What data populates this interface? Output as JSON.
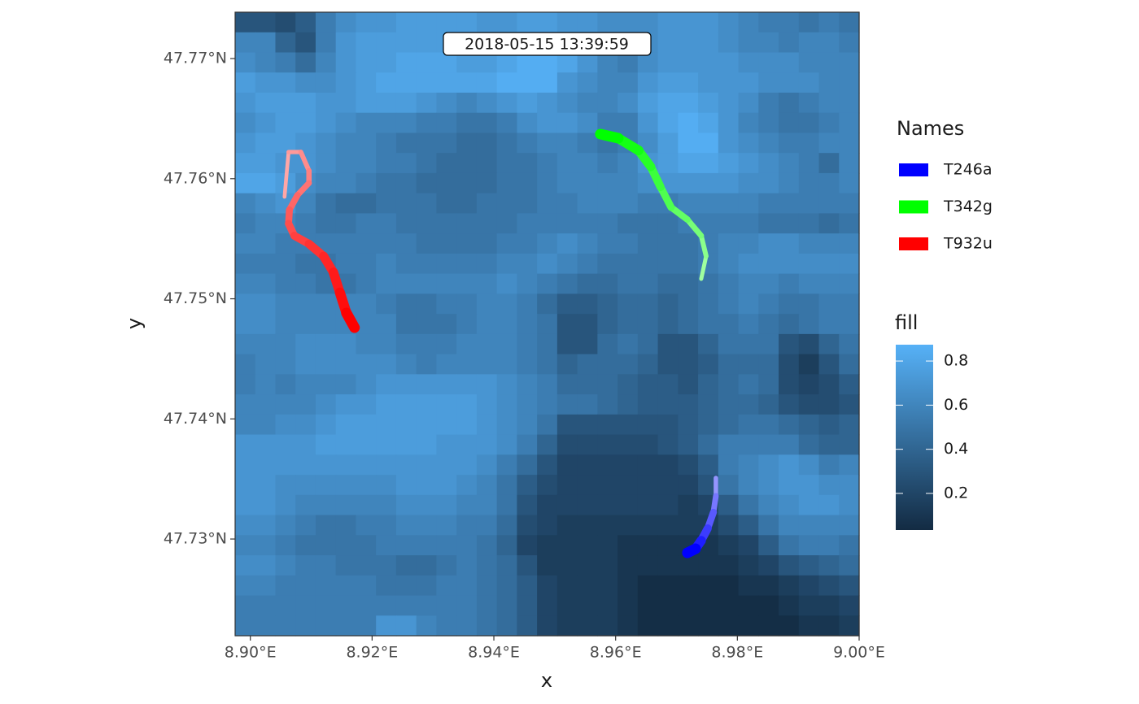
{
  "chart_data": {
    "type": "track-map",
    "annotation": "2018-05-15 13:39:59",
    "x_label": "x",
    "y_label": "y",
    "xlim": [
      8.8975,
      9.0
    ],
    "ylim": [
      47.72195,
      47.77386
    ],
    "xticks": [
      {
        "value": 8.9,
        "label": "8.90°E"
      },
      {
        "value": 8.92,
        "label": "8.92°E"
      },
      {
        "value": 8.94,
        "label": "8.94°E"
      },
      {
        "value": 8.96,
        "label": "8.96°E"
      },
      {
        "value": 8.98,
        "label": "8.98°E"
      },
      {
        "value": 9.0,
        "label": "9.00°E"
      }
    ],
    "yticks": [
      {
        "value": 47.73,
        "label": "47.73°N"
      },
      {
        "value": 47.74,
        "label": "47.74°N"
      },
      {
        "value": 47.75,
        "label": "47.75°N"
      },
      {
        "value": 47.76,
        "label": "47.76°N"
      },
      {
        "value": 47.77,
        "label": "47.77°N"
      }
    ],
    "legend_title": "Names",
    "series": [
      {
        "name": "T246a",
        "color": "#0000ff",
        "x": [
          8.97647,
          8.97647,
          8.97607,
          8.97513,
          8.97406,
          8.97313,
          8.97179
        ],
        "y": [
          47.73508,
          47.73359,
          47.73223,
          47.73088,
          47.72987,
          47.72919,
          47.72885
        ]
      },
      {
        "name": "T342g",
        "color": "#00ff00",
        "x": [
          8.97406,
          8.97487,
          8.97406,
          8.97179,
          8.96912,
          8.96738,
          8.96578,
          8.96377,
          8.96043,
          8.95749
        ],
        "y": [
          47.75166,
          47.75355,
          47.75525,
          47.7566,
          47.75761,
          47.75931,
          47.761,
          47.76235,
          47.76337,
          47.76371
        ]
      },
      {
        "name": "T932u",
        "color": "#ff0000",
        "x": [
          8.90562,
          8.90628,
          8.90829,
          8.90963,
          8.90963,
          8.90775,
          8.90642,
          8.90628,
          8.90722,
          8.90963,
          8.91203,
          8.91364,
          8.91471,
          8.91578,
          8.91711
        ],
        "y": [
          47.75849,
          47.76222,
          47.76222,
          47.76066,
          47.75964,
          47.75863,
          47.75741,
          47.75626,
          47.75525,
          47.75457,
          47.75355,
          47.7522,
          47.75051,
          47.74882,
          47.7476
        ]
      }
    ],
    "fill_title": "fill",
    "fill_low_color": "#132b43",
    "fill_high_color": "#56b1f7",
    "fill_lim": [
      0.034,
      0.874
    ],
    "fill_ticks": [
      0.2,
      0.4,
      0.6,
      0.8
    ],
    "raster": [
      [
        0.3,
        0.3,
        0.25,
        0.35,
        0.55,
        0.65,
        0.7,
        0.7,
        0.75,
        0.75,
        0.75,
        0.75,
        0.7,
        0.7,
        0.75,
        0.75,
        0.7,
        0.7,
        0.65,
        0.65,
        0.65,
        0.7,
        0.7,
        0.7,
        0.65,
        0.6,
        0.55,
        0.55,
        0.5,
        0.55,
        0.5
      ],
      [
        0.6,
        0.6,
        0.4,
        0.3,
        0.55,
        0.7,
        0.75,
        0.75,
        0.75,
        0.75,
        0.75,
        0.75,
        0.75,
        0.75,
        0.8,
        0.8,
        0.75,
        0.7,
        0.65,
        0.6,
        0.65,
        0.7,
        0.7,
        0.7,
        0.65,
        0.6,
        0.6,
        0.55,
        0.6,
        0.6,
        0.55
      ],
      [
        0.65,
        0.6,
        0.55,
        0.45,
        0.6,
        0.7,
        0.75,
        0.75,
        0.8,
        0.8,
        0.8,
        0.75,
        0.75,
        0.8,
        0.85,
        0.85,
        0.8,
        0.7,
        0.6,
        0.55,
        0.65,
        0.7,
        0.7,
        0.7,
        0.7,
        0.65,
        0.65,
        0.65,
        0.6,
        0.6,
        0.6
      ],
      [
        0.75,
        0.7,
        0.7,
        0.65,
        0.65,
        0.7,
        0.75,
        0.8,
        0.8,
        0.8,
        0.8,
        0.8,
        0.8,
        0.85,
        0.85,
        0.85,
        0.7,
        0.65,
        0.6,
        0.6,
        0.7,
        0.75,
        0.75,
        0.7,
        0.7,
        0.7,
        0.65,
        0.65,
        0.65,
        0.6,
        0.6
      ],
      [
        0.7,
        0.75,
        0.75,
        0.75,
        0.7,
        0.7,
        0.75,
        0.75,
        0.75,
        0.7,
        0.65,
        0.6,
        0.65,
        0.7,
        0.75,
        0.7,
        0.65,
        0.6,
        0.6,
        0.65,
        0.75,
        0.8,
        0.8,
        0.75,
        0.7,
        0.65,
        0.55,
        0.5,
        0.55,
        0.6,
        0.6
      ],
      [
        0.65,
        0.7,
        0.75,
        0.75,
        0.7,
        0.65,
        0.6,
        0.6,
        0.6,
        0.55,
        0.55,
        0.5,
        0.5,
        0.55,
        0.65,
        0.7,
        0.7,
        0.65,
        0.55,
        0.55,
        0.7,
        0.8,
        0.85,
        0.8,
        0.7,
        0.6,
        0.55,
        0.5,
        0.5,
        0.55,
        0.6
      ],
      [
        0.7,
        0.75,
        0.75,
        0.7,
        0.65,
        0.6,
        0.6,
        0.55,
        0.5,
        0.5,
        0.5,
        0.45,
        0.45,
        0.5,
        0.55,
        0.6,
        0.6,
        0.55,
        0.5,
        0.55,
        0.65,
        0.75,
        0.85,
        0.85,
        0.7,
        0.65,
        0.6,
        0.55,
        0.55,
        0.6,
        0.6
      ],
      [
        0.75,
        0.75,
        0.7,
        0.7,
        0.65,
        0.6,
        0.6,
        0.55,
        0.55,
        0.5,
        0.45,
        0.45,
        0.45,
        0.5,
        0.5,
        0.55,
        0.6,
        0.6,
        0.55,
        0.6,
        0.7,
        0.75,
        0.8,
        0.8,
        0.75,
        0.7,
        0.65,
        0.6,
        0.55,
        0.45,
        0.6
      ],
      [
        0.8,
        0.8,
        0.75,
        0.65,
        0.6,
        0.6,
        0.55,
        0.5,
        0.5,
        0.45,
        0.45,
        0.45,
        0.45,
        0.5,
        0.5,
        0.55,
        0.6,
        0.6,
        0.6,
        0.6,
        0.65,
        0.7,
        0.7,
        0.7,
        0.7,
        0.65,
        0.65,
        0.6,
        0.55,
        0.55,
        0.6
      ],
      [
        0.6,
        0.65,
        0.7,
        0.6,
        0.5,
        0.45,
        0.45,
        0.5,
        0.5,
        0.5,
        0.45,
        0.45,
        0.5,
        0.5,
        0.5,
        0.55,
        0.55,
        0.6,
        0.6,
        0.6,
        0.55,
        0.55,
        0.6,
        0.6,
        0.6,
        0.6,
        0.55,
        0.55,
        0.55,
        0.55,
        0.55
      ],
      [
        0.55,
        0.6,
        0.6,
        0.55,
        0.5,
        0.5,
        0.55,
        0.55,
        0.5,
        0.5,
        0.5,
        0.5,
        0.5,
        0.5,
        0.55,
        0.55,
        0.55,
        0.55,
        0.55,
        0.5,
        0.5,
        0.5,
        0.55,
        0.55,
        0.55,
        0.55,
        0.5,
        0.5,
        0.5,
        0.45,
        0.5
      ],
      [
        0.6,
        0.6,
        0.55,
        0.55,
        0.55,
        0.55,
        0.55,
        0.55,
        0.55,
        0.5,
        0.5,
        0.5,
        0.5,
        0.55,
        0.55,
        0.6,
        0.65,
        0.6,
        0.55,
        0.55,
        0.5,
        0.5,
        0.5,
        0.55,
        0.6,
        0.6,
        0.65,
        0.65,
        0.6,
        0.6,
        0.6
      ],
      [
        0.55,
        0.55,
        0.55,
        0.5,
        0.5,
        0.55,
        0.55,
        0.6,
        0.55,
        0.55,
        0.55,
        0.55,
        0.55,
        0.6,
        0.6,
        0.65,
        0.6,
        0.55,
        0.5,
        0.5,
        0.5,
        0.5,
        0.5,
        0.55,
        0.6,
        0.65,
        0.65,
        0.65,
        0.65,
        0.65,
        0.65
      ],
      [
        0.6,
        0.6,
        0.55,
        0.55,
        0.5,
        0.5,
        0.55,
        0.6,
        0.6,
        0.6,
        0.6,
        0.6,
        0.6,
        0.65,
        0.6,
        0.55,
        0.5,
        0.45,
        0.45,
        0.5,
        0.5,
        0.45,
        0.45,
        0.5,
        0.55,
        0.6,
        0.6,
        0.55,
        0.6,
        0.6,
        0.6
      ],
      [
        0.65,
        0.65,
        0.6,
        0.6,
        0.6,
        0.6,
        0.6,
        0.55,
        0.5,
        0.5,
        0.55,
        0.55,
        0.6,
        0.6,
        0.55,
        0.45,
        0.35,
        0.35,
        0.4,
        0.45,
        0.45,
        0.4,
        0.45,
        0.5,
        0.55,
        0.6,
        0.55,
        0.5,
        0.5,
        0.55,
        0.55
      ],
      [
        0.65,
        0.65,
        0.6,
        0.6,
        0.6,
        0.6,
        0.6,
        0.6,
        0.5,
        0.5,
        0.5,
        0.55,
        0.6,
        0.6,
        0.55,
        0.5,
        0.3,
        0.3,
        0.4,
        0.45,
        0.45,
        0.4,
        0.45,
        0.5,
        0.5,
        0.55,
        0.5,
        0.45,
        0.5,
        0.55,
        0.55
      ],
      [
        0.6,
        0.6,
        0.6,
        0.65,
        0.65,
        0.65,
        0.6,
        0.6,
        0.55,
        0.55,
        0.55,
        0.6,
        0.6,
        0.6,
        0.55,
        0.5,
        0.3,
        0.3,
        0.45,
        0.5,
        0.45,
        0.3,
        0.3,
        0.4,
        0.5,
        0.5,
        0.5,
        0.3,
        0.25,
        0.4,
        0.5
      ],
      [
        0.55,
        0.6,
        0.6,
        0.65,
        0.65,
        0.65,
        0.65,
        0.65,
        0.6,
        0.55,
        0.6,
        0.6,
        0.6,
        0.6,
        0.55,
        0.5,
        0.4,
        0.45,
        0.45,
        0.45,
        0.4,
        0.3,
        0.3,
        0.35,
        0.45,
        0.45,
        0.45,
        0.25,
        0.15,
        0.3,
        0.45
      ],
      [
        0.55,
        0.6,
        0.55,
        0.6,
        0.6,
        0.6,
        0.65,
        0.7,
        0.7,
        0.7,
        0.7,
        0.7,
        0.7,
        0.65,
        0.6,
        0.55,
        0.45,
        0.45,
        0.45,
        0.4,
        0.35,
        0.35,
        0.3,
        0.4,
        0.45,
        0.5,
        0.45,
        0.25,
        0.2,
        0.25,
        0.35
      ],
      [
        0.6,
        0.6,
        0.6,
        0.6,
        0.65,
        0.7,
        0.7,
        0.75,
        0.75,
        0.75,
        0.75,
        0.75,
        0.7,
        0.65,
        0.6,
        0.55,
        0.5,
        0.5,
        0.45,
        0.4,
        0.35,
        0.35,
        0.35,
        0.4,
        0.45,
        0.45,
        0.4,
        0.3,
        0.25,
        0.25,
        0.3
      ],
      [
        0.6,
        0.6,
        0.65,
        0.65,
        0.7,
        0.75,
        0.75,
        0.75,
        0.75,
        0.75,
        0.75,
        0.75,
        0.7,
        0.65,
        0.6,
        0.5,
        0.3,
        0.3,
        0.3,
        0.3,
        0.3,
        0.3,
        0.35,
        0.4,
        0.45,
        0.5,
        0.5,
        0.45,
        0.4,
        0.35,
        0.4
      ],
      [
        0.7,
        0.7,
        0.7,
        0.7,
        0.75,
        0.75,
        0.75,
        0.75,
        0.75,
        0.75,
        0.7,
        0.7,
        0.7,
        0.65,
        0.55,
        0.4,
        0.25,
        0.25,
        0.25,
        0.25,
        0.25,
        0.3,
        0.35,
        0.45,
        0.55,
        0.55,
        0.55,
        0.55,
        0.45,
        0.4,
        0.4
      ],
      [
        0.7,
        0.7,
        0.7,
        0.7,
        0.7,
        0.7,
        0.7,
        0.7,
        0.7,
        0.7,
        0.7,
        0.7,
        0.65,
        0.55,
        0.45,
        0.3,
        0.2,
        0.2,
        0.2,
        0.2,
        0.2,
        0.2,
        0.25,
        0.35,
        0.55,
        0.6,
        0.65,
        0.7,
        0.65,
        0.55,
        0.6
      ],
      [
        0.7,
        0.7,
        0.65,
        0.65,
        0.65,
        0.65,
        0.65,
        0.65,
        0.7,
        0.7,
        0.7,
        0.65,
        0.6,
        0.5,
        0.35,
        0.25,
        0.2,
        0.2,
        0.2,
        0.2,
        0.2,
        0.2,
        0.2,
        0.3,
        0.5,
        0.6,
        0.65,
        0.7,
        0.7,
        0.65,
        0.65
      ],
      [
        0.7,
        0.7,
        0.65,
        0.6,
        0.6,
        0.6,
        0.6,
        0.6,
        0.65,
        0.65,
        0.65,
        0.6,
        0.6,
        0.5,
        0.3,
        0.2,
        0.2,
        0.2,
        0.2,
        0.2,
        0.2,
        0.2,
        0.15,
        0.2,
        0.35,
        0.5,
        0.6,
        0.65,
        0.7,
        0.7,
        0.65
      ],
      [
        0.65,
        0.65,
        0.6,
        0.55,
        0.5,
        0.5,
        0.55,
        0.55,
        0.6,
        0.6,
        0.6,
        0.55,
        0.55,
        0.45,
        0.25,
        0.2,
        0.15,
        0.15,
        0.15,
        0.15,
        0.15,
        0.15,
        0.15,
        0.15,
        0.25,
        0.35,
        0.5,
        0.6,
        0.6,
        0.6,
        0.6
      ],
      [
        0.6,
        0.6,
        0.55,
        0.5,
        0.5,
        0.5,
        0.5,
        0.55,
        0.55,
        0.55,
        0.55,
        0.55,
        0.5,
        0.4,
        0.2,
        0.15,
        0.15,
        0.15,
        0.15,
        0.1,
        0.1,
        0.1,
        0.1,
        0.1,
        0.15,
        0.2,
        0.35,
        0.5,
        0.55,
        0.55,
        0.5
      ],
      [
        0.65,
        0.65,
        0.6,
        0.55,
        0.55,
        0.5,
        0.5,
        0.5,
        0.45,
        0.45,
        0.5,
        0.55,
        0.5,
        0.45,
        0.3,
        0.15,
        0.15,
        0.15,
        0.15,
        0.1,
        0.1,
        0.1,
        0.1,
        0.1,
        0.1,
        0.15,
        0.2,
        0.3,
        0.35,
        0.4,
        0.45
      ],
      [
        0.6,
        0.6,
        0.55,
        0.55,
        0.55,
        0.55,
        0.55,
        0.5,
        0.5,
        0.5,
        0.55,
        0.55,
        0.5,
        0.45,
        0.35,
        0.2,
        0.15,
        0.15,
        0.15,
        0.1,
        0.05,
        0.05,
        0.05,
        0.05,
        0.05,
        0.1,
        0.1,
        0.15,
        0.2,
        0.25,
        0.3
      ],
      [
        0.55,
        0.55,
        0.55,
        0.55,
        0.55,
        0.55,
        0.55,
        0.55,
        0.55,
        0.55,
        0.55,
        0.55,
        0.5,
        0.45,
        0.35,
        0.2,
        0.15,
        0.15,
        0.15,
        0.1,
        0.05,
        0.05,
        0.05,
        0.05,
        0.05,
        0.05,
        0.05,
        0.1,
        0.15,
        0.15,
        0.2
      ],
      [
        0.55,
        0.55,
        0.55,
        0.55,
        0.55,
        0.55,
        0.55,
        0.7,
        0.7,
        0.6,
        0.55,
        0.55,
        0.5,
        0.45,
        0.35,
        0.2,
        0.15,
        0.15,
        0.15,
        0.1,
        0.05,
        0.05,
        0.05,
        0.05,
        0.05,
        0.05,
        0.05,
        0.05,
        0.1,
        0.1,
        0.15
      ]
    ]
  }
}
